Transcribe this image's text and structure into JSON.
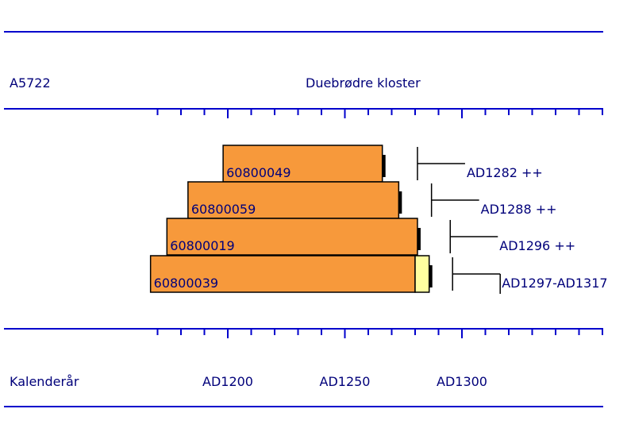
{
  "header": {
    "site_code": "A5722",
    "site_name": "Duebrødre kloster"
  },
  "footer": {
    "axis_label": "Kalenderår"
  },
  "colors": {
    "rule": "#0000cc",
    "bar": "#f7993b",
    "sapwood": "#ffffa0",
    "text": "#00007a",
    "outline": "#000000"
  },
  "chart_data": {
    "type": "bar",
    "orientation": "horizontal",
    "title": "Duebrødre kloster",
    "xlabel": "Kalenderår",
    "xlim": [
      1160,
      1360
    ],
    "x_ticks": [
      {
        "value": 1200,
        "label": "AD1200"
      },
      {
        "value": 1250,
        "label": "AD1250"
      },
      {
        "value": 1300,
        "label": "AD1300"
      }
    ],
    "minor_tick_step": 10,
    "series": [
      {
        "name": "60800049",
        "start": 1198,
        "end": 1266,
        "sapwood_end": null,
        "date_line": 1281,
        "felling": "AD1282 ++"
      },
      {
        "name": "60800059",
        "start": 1183,
        "end": 1273,
        "sapwood_end": null,
        "date_line": 1287,
        "felling": "AD1288 ++"
      },
      {
        "name": "60800019",
        "start": 1174,
        "end": 1281,
        "sapwood_end": null,
        "date_line": 1295,
        "felling": "AD1296 ++"
      },
      {
        "name": "60800039",
        "start": 1167,
        "end": 1280,
        "sapwood_end": 1286,
        "date_line": 1296,
        "felling": "AD1297-AD1317"
      }
    ]
  }
}
